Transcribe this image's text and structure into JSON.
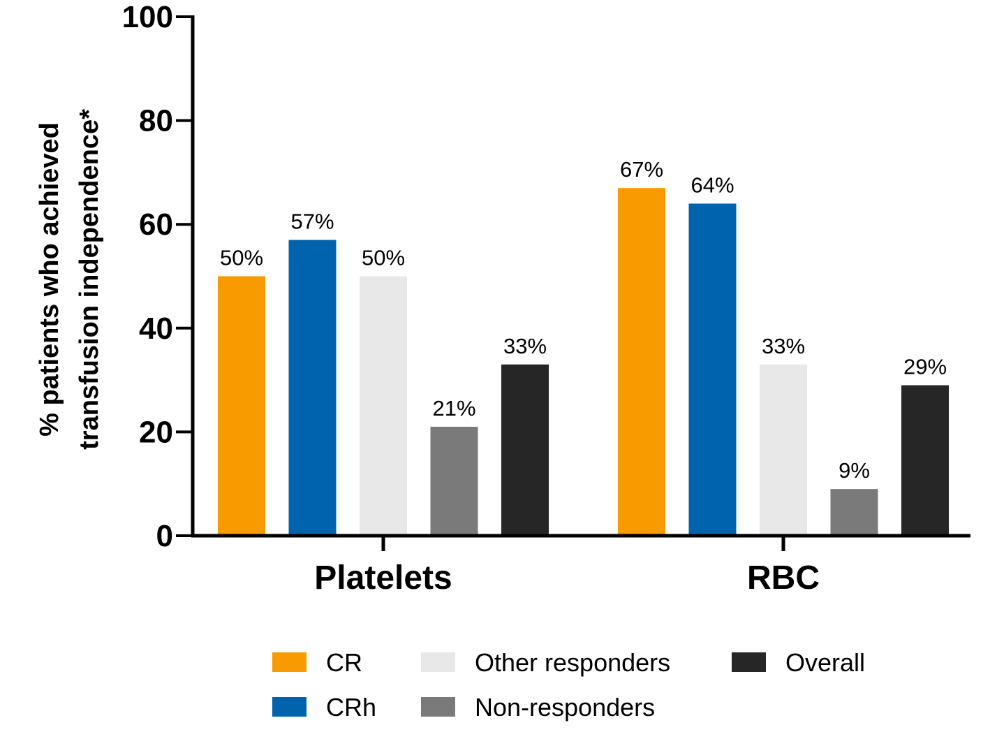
{
  "chart_data": {
    "type": "bar",
    "ylabel_lines": [
      "% patients who achieved",
      "transfusion independence*"
    ],
    "ylim": [
      0,
      100
    ],
    "yticks": [
      0,
      20,
      40,
      60,
      80,
      100
    ],
    "categories": [
      "Platelets",
      "RBC"
    ],
    "series": [
      {
        "name": "CR",
        "color": "#F79B00",
        "values": [
          50,
          67
        ],
        "labels": [
          "50%",
          "67%"
        ]
      },
      {
        "name": "CRh",
        "color": "#0063AD",
        "values": [
          57,
          64
        ],
        "labels": [
          "57%",
          "64%"
        ]
      },
      {
        "name": "Other responders",
        "color": "#E8E8E8",
        "values": [
          50,
          33
        ],
        "labels": [
          "50%",
          "33%"
        ]
      },
      {
        "name": "Non-responders",
        "color": "#7A7A7A",
        "values": [
          21,
          9
        ],
        "labels": [
          "21%",
          "9%"
        ]
      },
      {
        "name": "Overall",
        "color": "#262626",
        "values": [
          33,
          29
        ],
        "labels": [
          "33%",
          "29%"
        ]
      }
    ],
    "legend_position": "bottom",
    "grid": false
  }
}
